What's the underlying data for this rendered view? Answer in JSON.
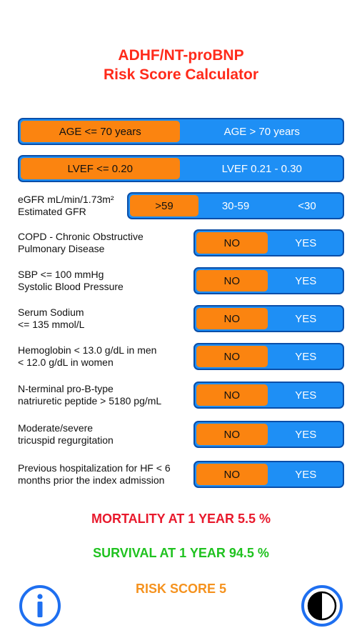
{
  "header": {
    "title_line1": "ADHF/NT-proBNP",
    "title_line2": "Risk Score Calculator"
  },
  "age": {
    "options": [
      "AGE <= 70 years",
      "AGE > 70 years"
    ],
    "selected": 0
  },
  "lvef": {
    "options": [
      "LVEF <= 0.20",
      "LVEF 0.21 - 0.30"
    ],
    "selected": 0
  },
  "egfr": {
    "label_line1": "eGFR mL/min/1.73m²",
    "label_line2": "Estimated GFR",
    "options": [
      ">59",
      "30-59",
      "<30"
    ],
    "selected": 0
  },
  "binary_rows": [
    {
      "line1": "COPD - Chronic Obstructive",
      "line2": "Pulmonary Disease",
      "no": "NO",
      "yes": "YES"
    },
    {
      "line1": "SBP <= 100 mmHg",
      "line2": "Systolic Blood Pressure",
      "no": "NO",
      "yes": "YES"
    },
    {
      "line1": "Serum Sodium",
      "line2": "<= 135 mmol/L",
      "no": "NO",
      "yes": "YES"
    },
    {
      "line1": "Hemoglobin < 13.0 g/dL in men",
      "line2": "< 12.0 g/dL in women",
      "no": "NO",
      "yes": "YES"
    },
    {
      "line1": "N-terminal pro-B-type",
      "line2": "natriuretic peptide > 5180 pg/mL",
      "no": "NO",
      "yes": "YES"
    },
    {
      "line1": "Moderate/severe",
      "line2": "tricuspid regurgitation",
      "no": "NO",
      "yes": "YES"
    },
    {
      "line1": "Previous hospitalization for HF < 6",
      "line2": "months prior the index admission",
      "no": "NO",
      "yes": "YES"
    }
  ],
  "results": {
    "mortality": "MORTALITY AT 1 YEAR  5.5 %",
    "survival": "SURVIVAL AT 1 YEAR  94.5 %",
    "risk_score": "RISK SCORE  5"
  },
  "colors": {
    "accent_blue": "#1e8ff5",
    "selected_orange": "#fb8410",
    "mortality_red": "#e8192c",
    "survival_green": "#1fc21f",
    "risk_orange": "#f5921e"
  },
  "icons": {
    "info": "info-icon",
    "theme": "contrast-icon"
  }
}
